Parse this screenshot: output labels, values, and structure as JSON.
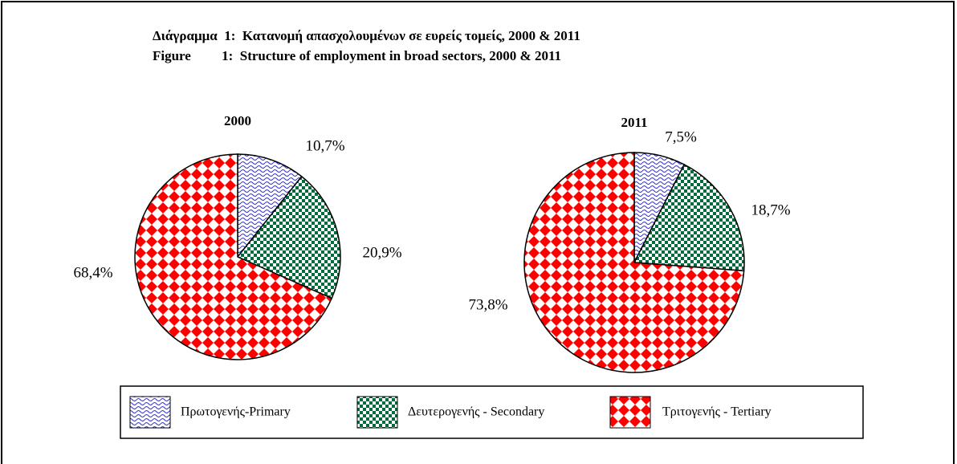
{
  "title": [
    "Διάγραμμα  1:  Κατανομή απασχολουμένων σε ευρείς τομείς, 2000 & 2011",
    "Figure         1:  Structure of employment in broad sectors, 2000 & 2011"
  ],
  "chart_data": [
    {
      "type": "pie",
      "title": "2000",
      "categories": [
        "Πρωτογενής-Primary",
        "Δευτερογενής - Secondary",
        "Τριτογενής - Tertiary"
      ],
      "values": [
        10.7,
        20.9,
        68.4
      ],
      "value_labels": [
        "10,7%",
        "20,9%",
        "68,4%"
      ],
      "colors": [
        "#3333cc",
        "#006b3a",
        "#ff0000"
      ]
    },
    {
      "type": "pie",
      "title": "2011",
      "categories": [
        "Πρωτογενής-Primary",
        "Δευτερογενής - Secondary",
        "Τριτογενής - Tertiary"
      ],
      "values": [
        7.5,
        18.7,
        73.8
      ],
      "value_labels": [
        "7,5%",
        "18,7%",
        "73,8%"
      ],
      "colors": [
        "#3333cc",
        "#006b3a",
        "#ff0000"
      ]
    }
  ]
}
